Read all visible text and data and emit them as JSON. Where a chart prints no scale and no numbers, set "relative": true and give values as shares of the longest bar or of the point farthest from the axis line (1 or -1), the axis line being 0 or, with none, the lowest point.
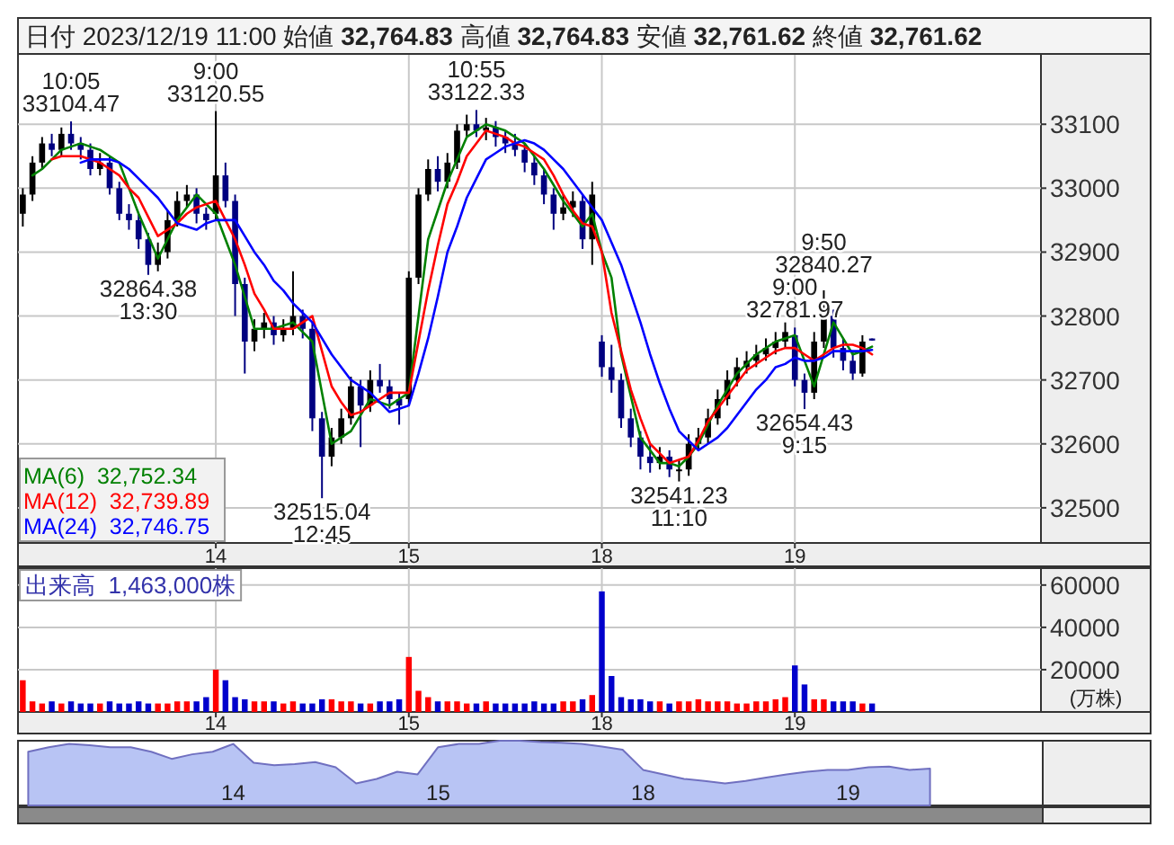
{
  "chart_data": [
    {
      "type": "candlestick",
      "title": "日付 2023/12/19 11:00 始値 **32,764.83** 高値 **32,764.83** 安値 **32,761.62** 終値 **32,761.62**",
      "categories": [
        null,
        null,
        null,
        null,
        null,
        null,
        null,
        null,
        null,
        null,
        null,
        null,
        null,
        null,
        null,
        null,
        null,
        null,
        null,
        null,
        "14",
        null,
        null,
        null,
        null,
        null,
        null,
        null,
        null,
        null,
        null,
        null,
        null,
        null,
        null,
        null,
        null,
        null,
        null,
        null,
        "15",
        null,
        null,
        null,
        null,
        null,
        null,
        null,
        null,
        null,
        null,
        null,
        null,
        null,
        null,
        null,
        null,
        null,
        null,
        null,
        "18",
        null,
        null,
        null,
        null,
        null,
        null,
        null,
        null,
        null,
        null,
        null,
        null,
        null,
        null,
        null,
        null,
        null,
        null,
        null,
        "19",
        null,
        null,
        null,
        null,
        null,
        null,
        null,
        null,
        null,
        null,
        null,
        null,
        null,
        null,
        null,
        null,
        null,
        null,
        null,
        null,
        null,
        null,
        null,
        null,
        null
      ],
      "ohlc": [
        [
          32960,
          33000,
          32940,
          32990
        ],
        [
          32990,
          33050,
          32980,
          33040
        ],
        [
          33040,
          33080,
          33030,
          33070
        ],
        [
          33070,
          33085,
          33050,
          33060
        ],
        [
          33060,
          33095,
          33050,
          33085
        ],
        [
          33085,
          33104.47,
          33060,
          33070
        ],
        [
          33070,
          33080,
          33045,
          33060
        ],
        [
          33060,
          33070,
          33020,
          33030
        ],
        [
          33030,
          33055,
          33020,
          33040
        ],
        [
          33040,
          33050,
          32990,
          33000
        ],
        [
          33000,
          33010,
          32950,
          32960
        ],
        [
          32960,
          32975,
          32935,
          32950
        ],
        [
          32950,
          32960,
          32905,
          32920
        ],
        [
          32920,
          32930,
          32864.38,
          32880
        ],
        [
          32880,
          32915,
          32870,
          32900
        ],
        [
          32900,
          32965,
          32890,
          32950
        ],
        [
          32950,
          32995,
          32940,
          32980
        ],
        [
          32980,
          33005,
          32970,
          32990
        ],
        [
          32990,
          33000,
          32945,
          32960
        ],
        [
          32960,
          32970,
          32935,
          32950
        ],
        [
          32960,
          33120.55,
          32950,
          33020
        ],
        [
          33020,
          33040,
          32970,
          32980
        ],
        [
          32980,
          32990,
          32800,
          32850
        ],
        [
          32850,
          32860,
          32710,
          32760
        ],
        [
          32760,
          32795,
          32745,
          32780
        ],
        [
          32780,
          32805,
          32765,
          32790
        ],
        [
          32790,
          32800,
          32755,
          32770
        ],
        [
          32770,
          32795,
          32760,
          32780
        ],
        [
          32780,
          32870,
          32770,
          32800
        ],
        [
          32800,
          32810,
          32765,
          32780
        ],
        [
          32780,
          32790,
          32620,
          32640
        ],
        [
          32640,
          32650,
          32515.04,
          32580
        ],
        [
          32580,
          32625,
          32565,
          32610
        ],
        [
          32610,
          32655,
          32600,
          32640
        ],
        [
          32640,
          32705,
          32630,
          32690
        ],
        [
          32690,
          32700,
          32595,
          32660
        ],
        [
          32660,
          32715,
          32650,
          32700
        ],
        [
          32700,
          32725,
          32680,
          32690
        ],
        [
          32690,
          32700,
          32655,
          32670
        ],
        [
          32670,
          32680,
          32630,
          32660
        ],
        [
          32670,
          32870,
          32660,
          32860
        ],
        [
          32860,
          33000,
          32850,
          32990
        ],
        [
          32990,
          33045,
          32980,
          33030
        ],
        [
          33030,
          33050,
          32995,
          33010
        ],
        [
          33010,
          33055,
          33000,
          33040
        ],
        [
          33040,
          33100,
          33030,
          33090
        ],
        [
          33090,
          33115,
          33080,
          33100
        ],
        [
          33100,
          33122.33,
          33080,
          33090
        ],
        [
          33090,
          33110,
          33075,
          33095
        ],
        [
          33095,
          33105,
          33065,
          33080
        ],
        [
          33080,
          33090,
          33055,
          33070
        ],
        [
          33070,
          33085,
          33050,
          33060
        ],
        [
          33060,
          33070,
          33025,
          33040
        ],
        [
          33040,
          33050,
          33005,
          33020
        ],
        [
          33020,
          33030,
          32975,
          32990
        ],
        [
          32990,
          33000,
          32935,
          32960
        ],
        [
          32960,
          32990,
          32950,
          32970
        ],
        [
          32970,
          32995,
          32955,
          32980
        ],
        [
          32980,
          32990,
          32905,
          32920
        ],
        [
          32920,
          33010,
          32880,
          32990
        ],
        [
          32760,
          32770,
          32705,
          32720
        ],
        [
          32720,
          32755,
          32680,
          32700
        ],
        [
          32700,
          32710,
          32625,
          32640
        ],
        [
          32640,
          32655,
          32595,
          32610
        ],
        [
          32610,
          32620,
          32560,
          32580
        ],
        [
          32580,
          32600,
          32555,
          32570
        ],
        [
          32570,
          32595,
          32560,
          32580
        ],
        [
          32580,
          32590,
          32548,
          32560
        ],
        [
          32560,
          32575,
          32541.23,
          32560
        ],
        [
          32560,
          32615,
          32550,
          32600
        ],
        [
          32600,
          32625,
          32590,
          32610
        ],
        [
          32610,
          32655,
          32600,
          32640
        ],
        [
          32640,
          32685,
          32630,
          32670
        ],
        [
          32670,
          32715,
          32660,
          32700
        ],
        [
          32700,
          32735,
          32690,
          32720
        ],
        [
          32720,
          32745,
          32710,
          32730
        ],
        [
          32730,
          32755,
          32720,
          32740
        ],
        [
          32740,
          32765,
          32730,
          32750
        ],
        [
          32750,
          32775,
          32740,
          32760
        ],
        [
          32760,
          32790,
          32750,
          32775
        ],
        [
          32770,
          32781.97,
          32690,
          32700
        ],
        [
          32700,
          32710,
          32654.43,
          32680
        ],
        [
          32680,
          32775,
          32670,
          32760
        ],
        [
          32760,
          32840.27,
          32750,
          32800
        ],
        [
          32800,
          32810,
          32735,
          32750
        ],
        [
          32750,
          32765,
          32715,
          32730
        ],
        [
          32730,
          32745,
          32700,
          32710
        ],
        [
          32710,
          32770,
          32705,
          32760
        ],
        [
          32764.83,
          32764.83,
          32761.62,
          32761.62
        ],
        null,
        null,
        null,
        null,
        null,
        null,
        null,
        null,
        null,
        null,
        null,
        null,
        null,
        null,
        null,
        null,
        null
      ],
      "colors": [
        "#000000",
        "#000000",
        "#000000",
        "#000080",
        "#000000",
        "#000080",
        "#000080",
        "#000080",
        "#000000",
        "#000080",
        "#000080",
        "#000080",
        "#000080",
        "#000080",
        "#000000",
        "#000000",
        "#000000",
        "#000000",
        "#000080",
        "#000080",
        "#000000",
        "#000080",
        "#000080",
        "#000080",
        "#000000",
        "#000000",
        "#000080",
        "#000000",
        "#000000",
        "#000080",
        "#000080",
        "#000080",
        "#000000",
        "#000000",
        "#000000",
        "#000080",
        "#000000",
        "#000080",
        "#000080",
        "#000080",
        "#000000",
        "#000000",
        "#000000",
        "#000080",
        "#000000",
        "#000000",
        "#000000",
        "#000080",
        "#000000",
        "#000080",
        "#000080",
        "#000080",
        "#000080",
        "#000080",
        "#000080",
        "#000080",
        "#000000",
        "#000000",
        "#000080",
        "#000000",
        "#000080",
        "#000080",
        "#000080",
        "#000080",
        "#000080",
        "#000080",
        "#000000",
        "#000080",
        "#000000",
        "#000000",
        "#000000",
        "#000000",
        "#000000",
        "#000000",
        "#000000",
        "#000000",
        "#000000",
        "#000000",
        "#000000",
        "#000000",
        "#000080",
        "#000080",
        "#000000",
        "#000000",
        "#000080",
        "#000080",
        "#000080",
        "#000000",
        "#000080",
        null,
        null,
        null,
        null,
        null,
        null,
        null,
        null,
        null,
        null,
        null,
        null,
        null,
        null,
        null,
        null,
        null
      ],
      "series": [
        {
          "type": "line",
          "name": "MA(6)  32,752.34",
          "color": "#008000",
          "values": [
            null,
            33020,
            33030,
            33045,
            33060,
            33065,
            33070,
            33065,
            33060,
            33050,
            33040,
            33000,
            32960,
            32925,
            32890,
            32920,
            32950,
            32970,
            32990,
            32975,
            32960,
            32920,
            32880,
            32830,
            32780,
            32780,
            32780,
            32785,
            32790,
            32775,
            32760,
            32680,
            32600,
            32610,
            32620,
            32645,
            32670,
            32665,
            32660,
            32670,
            32680,
            32800,
            32920,
            32965,
            33010,
            33045,
            33080,
            33090,
            33100,
            33095,
            33090,
            33080,
            33070,
            33050,
            33030,
            33005,
            32980,
            32960,
            32940,
            32960,
            32900,
            32860,
            32740,
            32675,
            32610,
            32590,
            32570,
            32570,
            32565,
            32580,
            32600,
            32630,
            32660,
            32685,
            32710,
            32725,
            32740,
            32750,
            32760,
            32765,
            32770,
            32730,
            32690,
            32740,
            32790,
            32765,
            32740,
            32745,
            32752,
            null,
            null,
            null,
            null,
            null,
            null,
            null,
            null,
            null,
            null,
            null,
            null,
            null,
            null,
            null,
            null,
            null
          ]
        },
        {
          "type": "line",
          "name": "MA(12)  32,739.89",
          "color": "#ff0000",
          "values": [
            null,
            null,
            null,
            33045,
            33050,
            33050,
            33050,
            33045,
            33040,
            33030,
            33020,
            33000,
            32985,
            32955,
            32925,
            32935,
            32945,
            32960,
            32970,
            32975,
            32980,
            32950,
            32920,
            32880,
            32835,
            32810,
            32780,
            32780,
            32780,
            32790,
            32800,
            32745,
            32690,
            32665,
            32645,
            32650,
            32660,
            32670,
            32680,
            32680,
            32680,
            32760,
            32840,
            32910,
            32975,
            33010,
            33050,
            33070,
            33090,
            33085,
            33080,
            33070,
            33065,
            33055,
            33045,
            33020,
            32990,
            32965,
            32945,
            32940,
            32900,
            32805,
            32745,
            32685,
            32640,
            32600,
            32585,
            32570,
            32575,
            32580,
            32605,
            32635,
            32655,
            32675,
            32695,
            32715,
            32725,
            32735,
            32745,
            32750,
            32750,
            32740,
            32730,
            32740,
            32750,
            32755,
            32755,
            32750,
            32740,
            null,
            null,
            null,
            null,
            null,
            null,
            null,
            null,
            null,
            null,
            null,
            null,
            null,
            null,
            null,
            null,
            null
          ]
        },
        {
          "type": "line",
          "name": "MA(24)  32,746.75",
          "color": "#0000ff",
          "values": [
            null,
            null,
            null,
            null,
            null,
            null,
            33040,
            33045,
            33045,
            33045,
            33040,
            33030,
            33015,
            33000,
            32985,
            32965,
            32945,
            32940,
            32935,
            32945,
            32950,
            32950,
            32950,
            32925,
            32900,
            32880,
            32855,
            32840,
            32820,
            32805,
            32790,
            32765,
            32740,
            32720,
            32700,
            32690,
            32680,
            32665,
            32650,
            32655,
            32660,
            32710,
            32765,
            32830,
            32900,
            32940,
            32985,
            33015,
            33045,
            33055,
            33065,
            33070,
            33075,
            33070,
            33060,
            33045,
            33030,
            33010,
            32990,
            32970,
            32950,
            32915,
            32880,
            32835,
            32790,
            32740,
            32695,
            32655,
            32620,
            32605,
            32590,
            32600,
            32610,
            32625,
            32645,
            32665,
            32685,
            32700,
            32720,
            32725,
            32735,
            32730,
            32730,
            32735,
            32745,
            32745,
            32745,
            32745,
            32747,
            null,
            null,
            null,
            null,
            null,
            null,
            null,
            null,
            null,
            null,
            null,
            null,
            null,
            null,
            null,
            null,
            null
          ]
        }
      ],
      "ylim": [
        32445,
        33210
      ],
      "yticks": [
        32500,
        32600,
        32700,
        32800,
        32900,
        33000,
        33100
      ],
      "grid": true,
      "legend": "bottom left",
      "annotations": [
        {
          "text": "10:05\n33104.47",
          "y": 33104.47
        },
        {
          "text": "9:00\n33120.55",
          "x": "14",
          "y": 33120.55
        },
        {
          "text": "32864.38\n13:30",
          "y": 32864.38
        },
        {
          "text": "32515.04\n12:45",
          "y": 32515.04
        },
        {
          "text": "10:55\n33122.33",
          "y": 33122.33
        },
        {
          "text": "32541.23\n11:10",
          "y": 32541.23
        },
        {
          "text": "9:00\n32781.97",
          "x": "19",
          "y": 32781.97
        },
        {
          "text": "32654.43\n9:15",
          "y": 32654.43
        },
        {
          "text": "9:50\n32840.27",
          "y": 32840.27
        }
      ]
    },
    {
      "type": "bar",
      "title": "出来高  1,463,000株",
      "ylabel": "(万株)",
      "categories": [
        null,
        null,
        null,
        null,
        null,
        null,
        null,
        null,
        null,
        null,
        null,
        null,
        null,
        null,
        null,
        null,
        null,
        null,
        null,
        null,
        "14",
        null,
        null,
        null,
        null,
        null,
        null,
        null,
        null,
        null,
        null,
        null,
        null,
        null,
        null,
        null,
        null,
        null,
        null,
        null,
        "15",
        null,
        null,
        null,
        null,
        null,
        null,
        null,
        null,
        null,
        null,
        null,
        null,
        null,
        null,
        null,
        null,
        null,
        null,
        null,
        "18",
        null,
        null,
        null,
        null,
        null,
        null,
        null,
        null,
        null,
        null,
        null,
        null,
        null,
        null,
        null,
        null,
        null,
        null,
        null,
        "19",
        null,
        null,
        null,
        null,
        null,
        null,
        null,
        null,
        null,
        null,
        null,
        null,
        null,
        null,
        null,
        null,
        null,
        null,
        null,
        null,
        null,
        null,
        null,
        null,
        null
      ],
      "values": [
        15000,
        5000,
        4000,
        5000,
        4000,
        5000,
        4000,
        4000,
        4000,
        5000,
        4000,
        4000,
        5000,
        4000,
        4000,
        4000,
        5000,
        5000,
        5000,
        7000,
        20000,
        15000,
        7000,
        6000,
        5000,
        5000,
        5000,
        4000,
        5000,
        4000,
        4000,
        6000,
        6000,
        5000,
        5000,
        4000,
        4000,
        5000,
        5000,
        6000,
        26000,
        10000,
        7000,
        5000,
        5000,
        5000,
        4000,
        4000,
        5000,
        4000,
        4000,
        4000,
        4000,
        5000,
        4000,
        4000,
        5000,
        5000,
        6000,
        8000,
        57000,
        17000,
        7000,
        6000,
        6000,
        5000,
        5000,
        4000,
        5000,
        5000,
        6000,
        5000,
        5000,
        5000,
        4000,
        4000,
        5000,
        5000,
        6000,
        7000,
        22000,
        13000,
        6000,
        6000,
        5000,
        5000,
        5000,
        4000,
        4000,
        null,
        null,
        null,
        null,
        null,
        null,
        null,
        null,
        null,
        null,
        null,
        null,
        null,
        null,
        null,
        null,
        null
      ],
      "colors": [
        "#ff0000",
        "#ff0000",
        "#ff0000",
        "#0000cc",
        "#ff0000",
        "#0000cc",
        "#0000cc",
        "#0000cc",
        "#ff0000",
        "#0000cc",
        "#0000cc",
        "#0000cc",
        "#0000cc",
        "#0000cc",
        "#ff0000",
        "#ff0000",
        "#ff0000",
        "#ff0000",
        "#0000cc",
        "#0000cc",
        "#ff0000",
        "#0000cc",
        "#0000cc",
        "#0000cc",
        "#ff0000",
        "#ff0000",
        "#0000cc",
        "#ff0000",
        "#ff0000",
        "#0000cc",
        "#0000cc",
        "#0000cc",
        "#ff0000",
        "#ff0000",
        "#ff0000",
        "#0000cc",
        "#ff0000",
        "#0000cc",
        "#0000cc",
        "#0000cc",
        "#ff0000",
        "#ff0000",
        "#ff0000",
        "#0000cc",
        "#ff0000",
        "#ff0000",
        "#ff0000",
        "#0000cc",
        "#ff0000",
        "#0000cc",
        "#0000cc",
        "#0000cc",
        "#0000cc",
        "#0000cc",
        "#0000cc",
        "#0000cc",
        "#ff0000",
        "#ff0000",
        "#0000cc",
        "#ff0000",
        "#0000cc",
        "#0000cc",
        "#0000cc",
        "#0000cc",
        "#0000cc",
        "#0000cc",
        "#ff0000",
        "#0000cc",
        "#ff0000",
        "#ff0000",
        "#ff0000",
        "#ff0000",
        "#ff0000",
        "#ff0000",
        "#ff0000",
        "#ff0000",
        "#ff0000",
        "#ff0000",
        "#ff0000",
        "#ff0000",
        "#0000cc",
        "#0000cc",
        "#ff0000",
        "#ff0000",
        "#0000cc",
        "#0000cc",
        "#0000cc",
        "#ff0000",
        "#0000cc",
        null,
        null,
        null,
        null,
        null,
        null,
        null,
        null,
        null,
        null,
        null,
        null,
        null,
        null,
        null,
        null,
        null
      ],
      "ylim": [
        0,
        68000
      ],
      "yticks": [
        20000,
        40000,
        60000
      ],
      "grid": true
    },
    {
      "type": "area",
      "relative": true,
      "color": "#b8c4f4",
      "categories": [
        null,
        null,
        null,
        null,
        null,
        null,
        null,
        null,
        null,
        null,
        "14",
        null,
        null,
        null,
        null,
        null,
        null,
        null,
        null,
        null,
        "15",
        null,
        null,
        null,
        null,
        null,
        null,
        null,
        null,
        null,
        "18",
        null,
        null,
        null,
        null,
        null,
        null,
        null,
        null,
        null,
        "19",
        null,
        null,
        null,
        null,
        null,
        null,
        null,
        null,
        null
      ],
      "values": [
        0.83,
        0.9,
        0.95,
        0.93,
        0.9,
        0.9,
        0.83,
        0.72,
        0.79,
        0.83,
        0.95,
        0.66,
        0.62,
        0.64,
        0.67,
        0.59,
        0.34,
        0.41,
        0.52,
        0.48,
        0.9,
        0.95,
        0.95,
        1,
        1,
        0.98,
        0.97,
        0.95,
        0.91,
        0.86,
        0.55,
        0.48,
        0.41,
        0.38,
        0.34,
        0.38,
        0.43,
        0.48,
        0.52,
        0.55,
        0.55,
        0.59,
        0.6,
        0.55,
        0.57,
        null,
        null,
        null,
        null,
        null
      ]
    }
  ]
}
